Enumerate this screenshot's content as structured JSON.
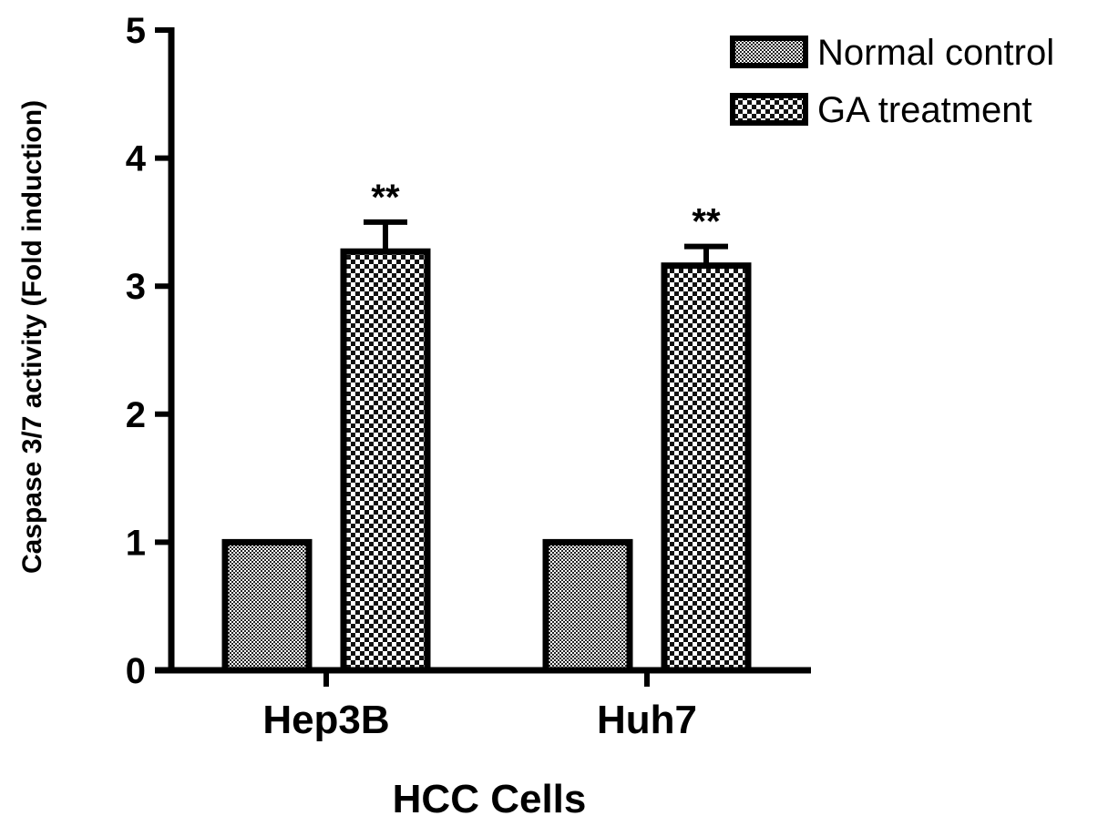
{
  "chart_data": {
    "type": "bar",
    "categories": [
      "Hep3B",
      "Huh7"
    ],
    "series": [
      {
        "name": "Normal control",
        "values": [
          1.0,
          1.0
        ],
        "errors": [
          0,
          0
        ],
        "annotations": [
          "",
          ""
        ]
      },
      {
        "name": "GA treatment",
        "values": [
          3.27,
          3.16
        ],
        "errors": [
          0.23,
          0.15
        ],
        "annotations": [
          "**",
          "**"
        ]
      }
    ],
    "xlabel": "HCC Cells",
    "ylabel": "Caspase 3/7 activity (Fold induction)",
    "ylim": [
      0,
      5
    ],
    "yticks": [
      "0",
      "1",
      "2",
      "3",
      "4",
      "5"
    ],
    "grid": false,
    "legend_position": "top-right",
    "colors": {
      "axis": "#000000",
      "bar_fill": "#ffffff",
      "pattern": "#000000"
    }
  }
}
